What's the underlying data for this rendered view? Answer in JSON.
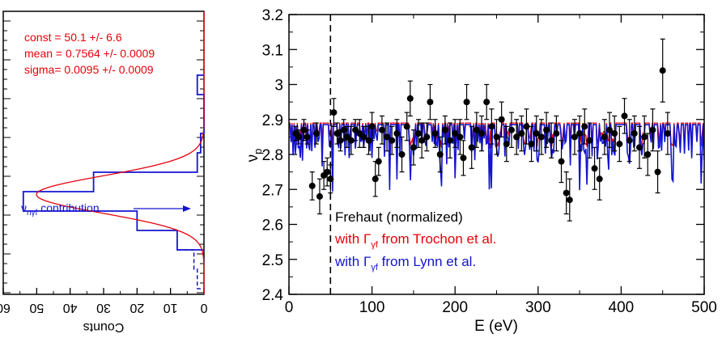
{
  "chart_data": [
    {
      "type": "histogram",
      "orientation": "rotated",
      "xlabel": "Counts",
      "xlim": [
        60,
        0
      ],
      "x_ticks": [
        "60",
        "50",
        "40",
        "30",
        "20",
        "10",
        "0"
      ],
      "fit_stats": [
        "const = 50.1 +/- 6.6",
        "mean = 0.7564 +/- 0.0009",
        "sigma= 0.0095 +/- 0.0009"
      ],
      "annotation": {
        "main": "ν",
        "sub": "nγf",
        "rest": " contribution"
      },
      "colors": {
        "histogram": "#1414d2",
        "fit": "#e8000b"
      },
      "histogram_bins": [
        {
          "bin": 0,
          "counts": 2
        },
        {
          "bin": 1,
          "counts": 0
        },
        {
          "bin": 2,
          "counts": 0
        },
        {
          "bin": 3,
          "counts": 1
        },
        {
          "bin": 4,
          "counts": 2
        },
        {
          "bin": 5,
          "counts": 33
        },
        {
          "bin": 6,
          "counts": 54
        },
        {
          "bin": 7,
          "counts": 20
        },
        {
          "bin": 8,
          "counts": 8
        },
        {
          "bin": 9,
          "counts": 3
        },
        {
          "bin": 10,
          "counts": 2
        }
      ]
    },
    {
      "type": "line+scatter",
      "xlabel": "E (eV)",
      "ylabel": {
        "main": "ν",
        "sub": "p"
      },
      "xlim": [
        0,
        500
      ],
      "ylim": [
        2.4,
        3.2
      ],
      "x_ticks": [
        0,
        100,
        200,
        300,
        400,
        500
      ],
      "y_ticks": [
        "2.4",
        "2.5",
        "2.6",
        "2.7",
        "2.8",
        "2.9",
        "3",
        "3.1",
        "3.2"
      ],
      "vertical_line_x": 50,
      "series": [
        {
          "name": "Frehaut (normalized)",
          "color": "#000000",
          "kind": "points with error bars",
          "points": [
            [
              8,
              2.86,
              0.02
            ],
            [
              12,
              2.85,
              0.02
            ],
            [
              18,
              2.87,
              0.03
            ],
            [
              22,
              2.85,
              0.02
            ],
            [
              28,
              2.71,
              0.04
            ],
            [
              33,
              2.86,
              0.03
            ],
            [
              37,
              2.68,
              0.05
            ],
            [
              42,
              2.74,
              0.04
            ],
            [
              46,
              2.75,
              0.04
            ],
            [
              50,
              2.73,
              0.04
            ],
            [
              54,
              2.92,
              0.04
            ],
            [
              58,
              2.86,
              0.03
            ],
            [
              62,
              2.84,
              0.03
            ],
            [
              66,
              2.87,
              0.03
            ],
            [
              70,
              2.85,
              0.03
            ],
            [
              75,
              2.84,
              0.04
            ],
            [
              80,
              2.87,
              0.03
            ],
            [
              85,
              2.86,
              0.04
            ],
            [
              90,
              2.85,
              0.03
            ],
            [
              96,
              2.84,
              0.04
            ],
            [
              100,
              2.88,
              0.04
            ],
            [
              104,
              2.73,
              0.05
            ],
            [
              108,
              2.78,
              0.04
            ],
            [
              112,
              2.87,
              0.04
            ],
            [
              118,
              2.85,
              0.04
            ],
            [
              124,
              2.84,
              0.04
            ],
            [
              130,
              2.86,
              0.04
            ],
            [
              136,
              2.8,
              0.05
            ],
            [
              142,
              2.88,
              0.04
            ],
            [
              146,
              2.96,
              0.05
            ],
            [
              150,
              2.82,
              0.05
            ],
            [
              156,
              2.86,
              0.04
            ],
            [
              160,
              2.84,
              0.05
            ],
            [
              166,
              2.85,
              0.04
            ],
            [
              170,
              2.95,
              0.05
            ],
            [
              176,
              2.86,
              0.04
            ],
            [
              182,
              2.8,
              0.05
            ],
            [
              188,
              2.87,
              0.04
            ],
            [
              194,
              2.84,
              0.05
            ],
            [
              200,
              2.86,
              0.04
            ],
            [
              206,
              2.85,
              0.05
            ],
            [
              210,
              2.79,
              0.05
            ],
            [
              214,
              2.95,
              0.05
            ],
            [
              220,
              2.82,
              0.06
            ],
            [
              226,
              2.87,
              0.05
            ],
            [
              232,
              2.86,
              0.05
            ],
            [
              238,
              2.95,
              0.05
            ],
            [
              244,
              2.88,
              0.05
            ],
            [
              250,
              2.85,
              0.05
            ],
            [
              256,
              2.9,
              0.05
            ],
            [
              262,
              2.83,
              0.05
            ],
            [
              268,
              2.87,
              0.05
            ],
            [
              274,
              2.85,
              0.05
            ],
            [
              280,
              2.86,
              0.05
            ],
            [
              286,
              2.88,
              0.05
            ],
            [
              292,
              2.83,
              0.05
            ],
            [
              298,
              2.86,
              0.05
            ],
            [
              304,
              2.85,
              0.05
            ],
            [
              310,
              2.87,
              0.05
            ],
            [
              316,
              2.84,
              0.05
            ],
            [
              322,
              2.86,
              0.05
            ],
            [
              328,
              2.78,
              0.06
            ],
            [
              334,
              2.69,
              0.06
            ],
            [
              338,
              2.67,
              0.06
            ],
            [
              344,
              2.85,
              0.05
            ],
            [
              350,
              2.86,
              0.05
            ],
            [
              356,
              2.88,
              0.05
            ],
            [
              362,
              2.84,
              0.05
            ],
            [
              368,
              2.76,
              0.06
            ],
            [
              374,
              2.73,
              0.06
            ],
            [
              380,
              2.85,
              0.05
            ],
            [
              386,
              2.87,
              0.05
            ],
            [
              392,
              2.86,
              0.05
            ],
            [
              398,
              2.83,
              0.05
            ],
            [
              404,
              2.91,
              0.05
            ],
            [
              410,
              2.84,
              0.06
            ],
            [
              416,
              2.86,
              0.05
            ],
            [
              422,
              2.82,
              0.06
            ],
            [
              428,
              2.85,
              0.06
            ],
            [
              432,
              2.8,
              0.06
            ],
            [
              438,
              2.87,
              0.06
            ],
            [
              444,
              2.75,
              0.06
            ],
            [
              450,
              3.04,
              0.09
            ],
            [
              456,
              2.86,
              0.06
            ]
          ]
        },
        {
          "name": "with Γγf from Trochon et al.",
          "color": "#e8000b",
          "kind": "line",
          "baseline": 2.89
        },
        {
          "name": "with Γγf from Lynn et al.",
          "color": "#1414d2",
          "kind": "line",
          "baseline": 2.885
        }
      ],
      "legend": [
        {
          "text": "Frehaut (normalized)",
          "color": "#000000"
        },
        {
          "prefix": "with ",
          "greek": "Γ",
          "sub": "γf",
          "suffix": " from Trochon et al.",
          "color": "#e8000b"
        },
        {
          "prefix": "with ",
          "greek": "Γ",
          "sub": "γf",
          "suffix": " from Lynn et al.",
          "color": "#1414d2"
        }
      ],
      "legend_placement": "bottom-left"
    }
  ]
}
